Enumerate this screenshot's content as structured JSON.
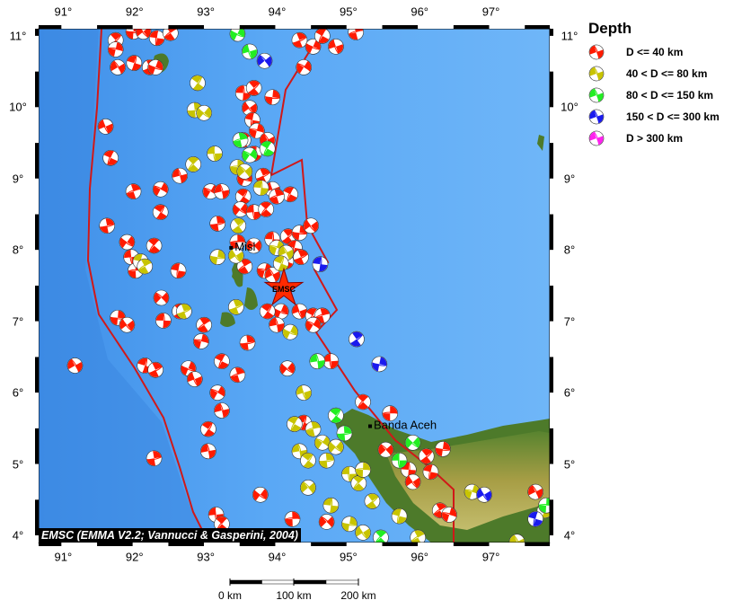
{
  "map": {
    "lon_range": [
      90.68,
      97.85
    ],
    "lat_range": [
      3.9,
      11.1
    ],
    "lon_ticks": [
      91,
      92,
      93,
      94,
      95,
      96,
      97
    ],
    "lat_ticks": [
      4,
      5,
      6,
      7,
      8,
      9,
      10,
      11
    ],
    "lon_tick_labels": [
      "91°",
      "92°",
      "93°",
      "94°",
      "95°",
      "96°",
      "97°"
    ],
    "lat_tick_labels": [
      "4°",
      "5°",
      "6°",
      "7°",
      "8°",
      "9°",
      "10°",
      "11°"
    ],
    "ocean_color": "#4f9ff2",
    "land_color": "#4d7a2a",
    "boundary_color": "#d01818",
    "cities": [
      {
        "name": "Misl",
        "lon": 93.38,
        "lat": 8.03
      },
      {
        "name": "Banda Aceh",
        "lon": 95.33,
        "lat": 5.53
      }
    ],
    "epicenter": {
      "label": "EMSC",
      "lon": 94.12,
      "lat": 7.46,
      "color": "#ff2a00"
    },
    "attribution": "EMSC (EMMA V2.2; Vannucci & Gasperini, 2004)"
  },
  "legend": {
    "title": "Depth",
    "items": [
      {
        "label": "D <= 40 km",
        "color": "#ff1a00"
      },
      {
        "label": "40 < D <= 80 km",
        "color": "#c8c400"
      },
      {
        "label": "80 < D <= 150 km",
        "color": "#22ee22"
      },
      {
        "label": "150 < D <= 300 km",
        "color": "#1a1aee"
      },
      {
        "label": "D > 300 km",
        "color": "#ff22ee"
      }
    ]
  },
  "scale_bar": {
    "labels": [
      "0 km",
      "100 km",
      "200 km"
    ]
  },
  "events": {
    "d40": [
      [
        91.76,
        10.94
      ],
      [
        92.01,
        11.06
      ],
      [
        92.15,
        11.06
      ],
      [
        92.34,
        10.97
      ],
      [
        92.53,
        11.04
      ],
      [
        91.76,
        10.81
      ],
      [
        91.79,
        10.56
      ],
      [
        92.02,
        10.62
      ],
      [
        92.24,
        10.56
      ],
      [
        92.32,
        10.56
      ],
      [
        91.62,
        9.73
      ],
      [
        91.69,
        9.29
      ],
      [
        92.01,
        8.82
      ],
      [
        92.39,
        8.85
      ],
      [
        92.66,
        9.04
      ],
      [
        92.39,
        8.53
      ],
      [
        91.64,
        8.34
      ],
      [
        91.92,
        8.11
      ],
      [
        91.98,
        7.9
      ],
      [
        92.3,
        8.06
      ],
      [
        92.04,
        7.71
      ],
      [
        92.4,
        7.33
      ],
      [
        92.43,
        7.01
      ],
      [
        92.66,
        7.14
      ],
      [
        91.79,
        7.05
      ],
      [
        91.92,
        6.95
      ],
      [
        92.64,
        7.71
      ],
      [
        93.0,
        6.95
      ],
      [
        92.96,
        6.72
      ],
      [
        91.19,
        6.38
      ],
      [
        92.17,
        6.38
      ],
      [
        92.32,
        6.32
      ],
      [
        92.78,
        6.34
      ],
      [
        92.87,
        6.19
      ],
      [
        93.25,
        6.44
      ],
      [
        93.47,
        6.25
      ],
      [
        93.19,
        6.0
      ],
      [
        93.25,
        5.75
      ],
      [
        93.06,
        5.49
      ],
      [
        92.3,
        5.08
      ],
      [
        93.79,
        4.57
      ],
      [
        93.17,
        4.29
      ],
      [
        93.25,
        4.16
      ],
      [
        94.24,
        4.23
      ],
      [
        94.72,
        4.19
      ],
      [
        93.55,
        10.2
      ],
      [
        93.7,
        10.27
      ],
      [
        93.96,
        10.14
      ],
      [
        93.64,
        9.99
      ],
      [
        93.68,
        9.82
      ],
      [
        93.55,
        9.54
      ],
      [
        93.74,
        9.67
      ],
      [
        93.89,
        9.54
      ],
      [
        93.7,
        9.35
      ],
      [
        93.83,
        9.04
      ],
      [
        93.57,
        9.0
      ],
      [
        93.96,
        8.85
      ],
      [
        94.21,
        8.78
      ],
      [
        94.02,
        8.75
      ],
      [
        93.09,
        8.82
      ],
      [
        93.25,
        8.82
      ],
      [
        93.55,
        8.75
      ],
      [
        93.19,
        8.37
      ],
      [
        93.51,
        8.57
      ],
      [
        93.7,
        8.53
      ],
      [
        93.87,
        8.57
      ],
      [
        93.47,
        8.11
      ],
      [
        93.7,
        8.06
      ],
      [
        93.96,
        8.15
      ],
      [
        94.18,
        8.19
      ],
      [
        94.34,
        8.24
      ],
      [
        94.5,
        8.34
      ],
      [
        94.27,
        8.03
      ],
      [
        93.57,
        7.77
      ],
      [
        93.85,
        7.71
      ],
      [
        93.96,
        7.65
      ],
      [
        94.15,
        7.84
      ],
      [
        94.36,
        7.9
      ],
      [
        94.08,
        7.14
      ],
      [
        94.34,
        7.14
      ],
      [
        94.53,
        7.08
      ],
      [
        94.66,
        7.08
      ],
      [
        94.53,
        6.95
      ],
      [
        94.02,
        6.95
      ],
      [
        93.89,
        7.14
      ],
      [
        93.61,
        6.7
      ],
      [
        94.17,
        6.34
      ],
      [
        94.78,
        6.44
      ],
      [
        95.23,
        5.87
      ],
      [
        95.61,
        5.71
      ],
      [
        95.55,
        5.2
      ],
      [
        95.87,
        4.92
      ],
      [
        96.12,
        5.11
      ],
      [
        96.35,
        5.21
      ],
      [
        95.93,
        4.75
      ],
      [
        96.18,
        4.89
      ],
      [
        96.31,
        4.35
      ],
      [
        96.44,
        4.29
      ],
      [
        97.65,
        4.61
      ],
      [
        94.4,
        5.58
      ],
      [
        94.34,
        10.94
      ],
      [
        94.53,
        10.85
      ],
      [
        94.85,
        10.85
      ],
      [
        94.66,
        11.0
      ],
      [
        95.13,
        11.05
      ],
      [
        94.4,
        10.56
      ],
      [
        93.06,
        5.18
      ]
    ],
    "d80": [
      [
        92.91,
        10.34
      ],
      [
        92.87,
        9.96
      ],
      [
        93.0,
        9.92
      ],
      [
        93.15,
        9.35
      ],
      [
        92.85,
        9.2
      ],
      [
        93.47,
        9.16
      ],
      [
        93.57,
        9.1
      ],
      [
        93.8,
        8.87
      ],
      [
        93.48,
        8.34
      ],
      [
        93.19,
        7.9
      ],
      [
        93.45,
        7.92
      ],
      [
        92.11,
        7.84
      ],
      [
        92.17,
        7.77
      ],
      [
        94.02,
        8.03
      ],
      [
        94.15,
        7.96
      ],
      [
        94.08,
        7.81
      ],
      [
        93.45,
        7.2
      ],
      [
        94.21,
        6.85
      ],
      [
        94.4,
        6.0
      ],
      [
        94.27,
        5.56
      ],
      [
        94.53,
        5.49
      ],
      [
        94.66,
        5.3
      ],
      [
        94.34,
        5.18
      ],
      [
        94.46,
        5.05
      ],
      [
        94.72,
        5.05
      ],
      [
        94.85,
        5.24
      ],
      [
        95.04,
        4.86
      ],
      [
        95.17,
        4.73
      ],
      [
        95.23,
        4.92
      ],
      [
        94.46,
        4.67
      ],
      [
        94.78,
        4.42
      ],
      [
        95.36,
        4.48
      ],
      [
        95.04,
        4.16
      ],
      [
        95.23,
        4.04
      ],
      [
        95.74,
        4.27
      ],
      [
        96.0,
        3.97
      ],
      [
        96.76,
        4.61
      ],
      [
        97.39,
        3.91
      ],
      [
        97.78,
        4.35
      ],
      [
        92.72,
        7.14
      ]
    ],
    "d150": [
      [
        93.47,
        11.03
      ],
      [
        93.64,
        10.78
      ],
      [
        93.89,
        9.42
      ],
      [
        93.51,
        9.54
      ],
      [
        93.64,
        9.33
      ],
      [
        94.59,
        6.44
      ],
      [
        94.85,
        5.68
      ],
      [
        94.97,
        5.43
      ],
      [
        95.93,
        5.3
      ],
      [
        95.74,
        5.05
      ],
      [
        95.48,
        3.97
      ],
      [
        97.8,
        4.42
      ]
    ],
    "d300": [
      [
        93.85,
        10.65
      ],
      [
        94.63,
        7.8
      ],
      [
        95.14,
        6.75
      ],
      [
        95.46,
        6.4
      ],
      [
        96.93,
        4.57
      ],
      [
        97.65,
        4.23
      ]
    ],
    "deep": []
  }
}
